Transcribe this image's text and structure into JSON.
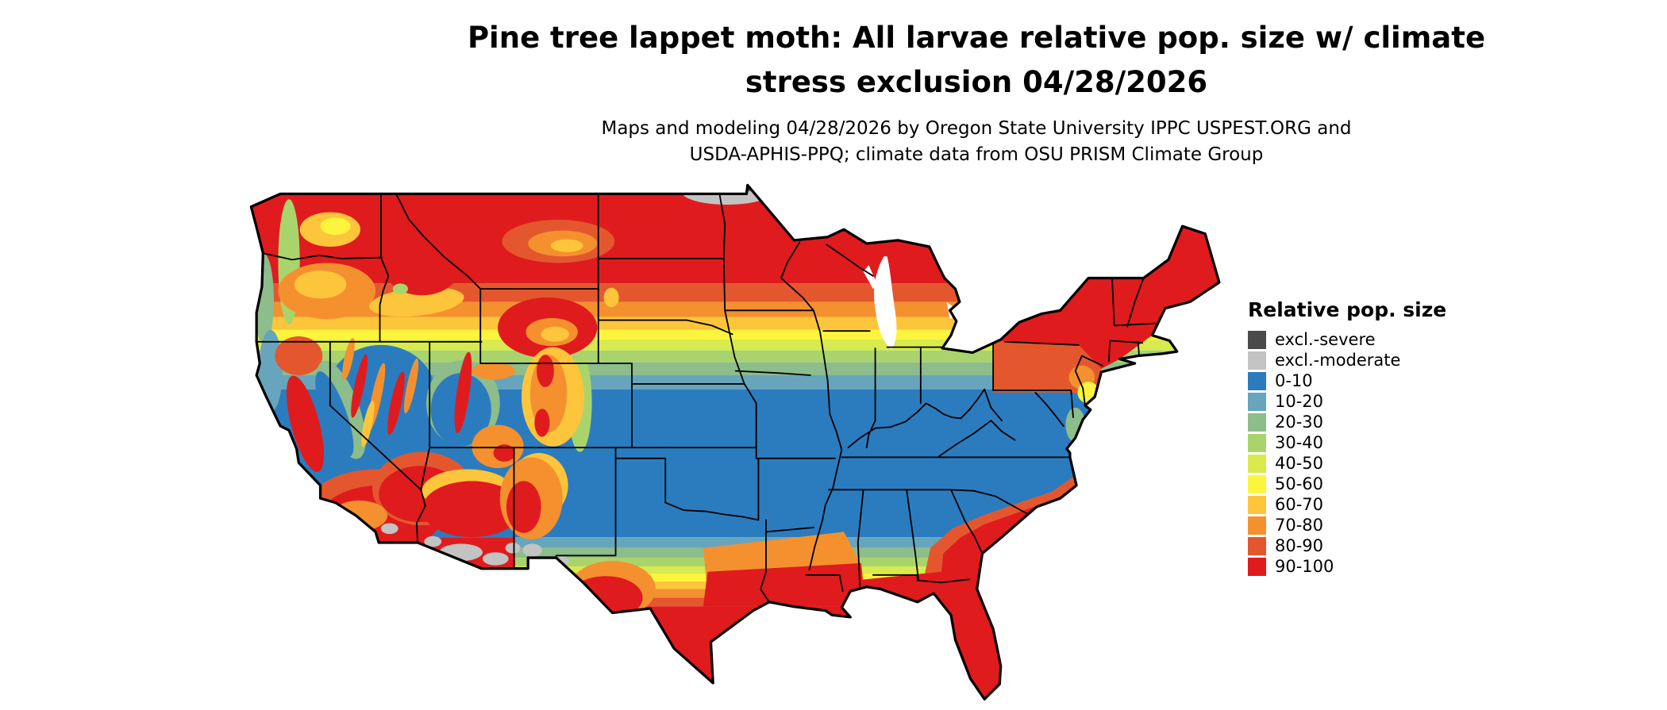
{
  "title": {
    "line1": "Pine tree lappet moth: All larvae relative pop. size w/ climate",
    "line2": "stress exclusion 04/28/2026"
  },
  "subtitle": {
    "line1": "Maps and modeling 04/28/2026 by Oregon State University IPPC USPEST.ORG and",
    "line2": "USDA-APHIS-PPQ; climate data from OSU PRISM Climate Group"
  },
  "legend": {
    "title": "Relative pop. size"
  },
  "chart_data": {
    "type": "choropleth_map",
    "region": "Conterminous United States",
    "variable": "Pine tree lappet moth: all larvae relative population size (%) with climate stress exclusion, 04/28/2026",
    "legend_title": "Relative pop. size",
    "classes": [
      {
        "key": "excl_severe",
        "label": "excl.-severe",
        "color": "#4a4a4a"
      },
      {
        "key": "excl_moderate",
        "label": "excl.-moderate",
        "color": "#c3c3c3"
      },
      {
        "key": "p0",
        "label": "0-10",
        "color": "#2b7cbf"
      },
      {
        "key": "p10",
        "label": "10-20",
        "color": "#66a5bb"
      },
      {
        "key": "p20",
        "label": "20-30",
        "color": "#8cbd8b"
      },
      {
        "key": "p30",
        "label": "30-40",
        "color": "#a9d46c"
      },
      {
        "key": "p40",
        "label": "40-50",
        "color": "#d8ea4e"
      },
      {
        "key": "p50",
        "label": "50-60",
        "color": "#fdf53d"
      },
      {
        "key": "p60",
        "label": "60-70",
        "color": "#fdc53b"
      },
      {
        "key": "p70",
        "label": "70-80",
        "color": "#f5902f"
      },
      {
        "key": "p80",
        "label": "80-90",
        "color": "#e4572e"
      },
      {
        "key": "p90",
        "label": "90-100",
        "color": "#e01b1d"
      }
    ],
    "spatial_pattern": {
      "northern_tier_WA_MT_ND_MN_WI_MI": "90-100",
      "northeast_NY_new_england": "90-100",
      "central_band_KS_MO_KY_TN_VA_NC": "0-10",
      "gulf_coast_TX_LA_MS_AL_GA_FL": "90-100",
      "southeast_atlantic_coast": "80-100",
      "mountain_west": "mottled 0-100 following terrain",
      "north_dakota_minnesota_border": "excl.-moderate with small excl.-severe",
      "southern_arizona_new_mexico": "90-100 with excl.-moderate patches"
    }
  }
}
